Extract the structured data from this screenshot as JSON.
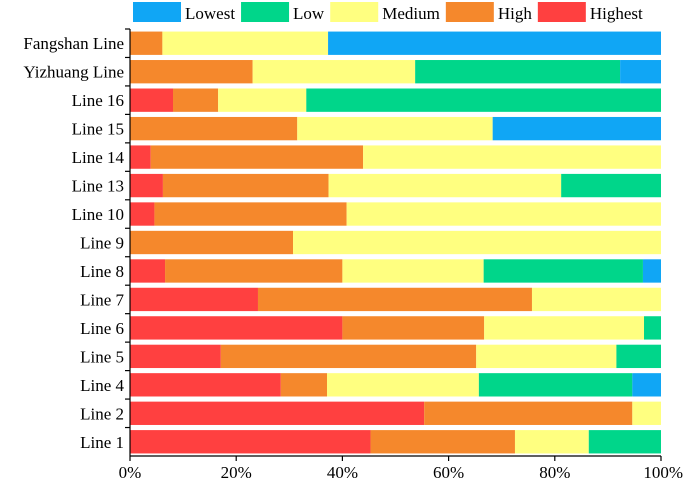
{
  "chart_data": {
    "type": "bar",
    "orientation": "horizontal",
    "stacked": "percent",
    "title": "",
    "xlabel": "",
    "ylabel": "",
    "xlim": [
      0,
      100
    ],
    "x_ticks": [
      "0%",
      "20%",
      "40%",
      "60%",
      "80%",
      "100%"
    ],
    "grid": false,
    "legend_position": "top",
    "categories": [
      "Fangshan Line",
      "Yizhuang Line",
      "Line 16",
      "Line 15",
      "Line 14",
      "Line 13",
      "Line 10",
      "Line 9",
      "Line 8",
      "Line 7",
      "Line 6",
      "Line 5",
      "Line 4",
      "Line 2",
      "Line 1"
    ],
    "series": [
      {
        "name": "Highest",
        "color": "#ff4040",
        "values": [
          0,
          0,
          8.1,
          0,
          3.9,
          6.2,
          4.6,
          0,
          6.6,
          24.1,
          40.0,
          17.1,
          28.4,
          55.4,
          45.3
        ]
      },
      {
        "name": "High",
        "color": "#f5882c",
        "values": [
          6.1,
          23.1,
          8.5,
          31.5,
          40.0,
          31.2,
          36.2,
          30.7,
          33.4,
          51.6,
          26.7,
          48.1,
          8.7,
          39.2,
          27.2
        ]
      },
      {
        "name": "Medium",
        "color": "#ffff80",
        "values": [
          31.2,
          30.6,
          16.6,
          36.8,
          56.1,
          43.8,
          59.2,
          69.3,
          26.6,
          24.3,
          30.1,
          26.4,
          28.6,
          5.4,
          13.9
        ]
      },
      {
        "name": "Low",
        "color": "#00d68a",
        "values": [
          0,
          38.6,
          66.8,
          0,
          0,
          18.8,
          0,
          0,
          30.0,
          0,
          3.2,
          8.4,
          28.9,
          0,
          13.6
        ]
      },
      {
        "name": "Lowest",
        "color": "#10a6f5",
        "values": [
          62.7,
          7.7,
          0,
          31.7,
          0,
          0,
          0,
          0,
          3.4,
          0,
          0,
          0,
          5.4,
          0,
          0
        ]
      }
    ],
    "legend_order": [
      "Lowest",
      "Low",
      "Medium",
      "High",
      "Highest"
    ]
  }
}
